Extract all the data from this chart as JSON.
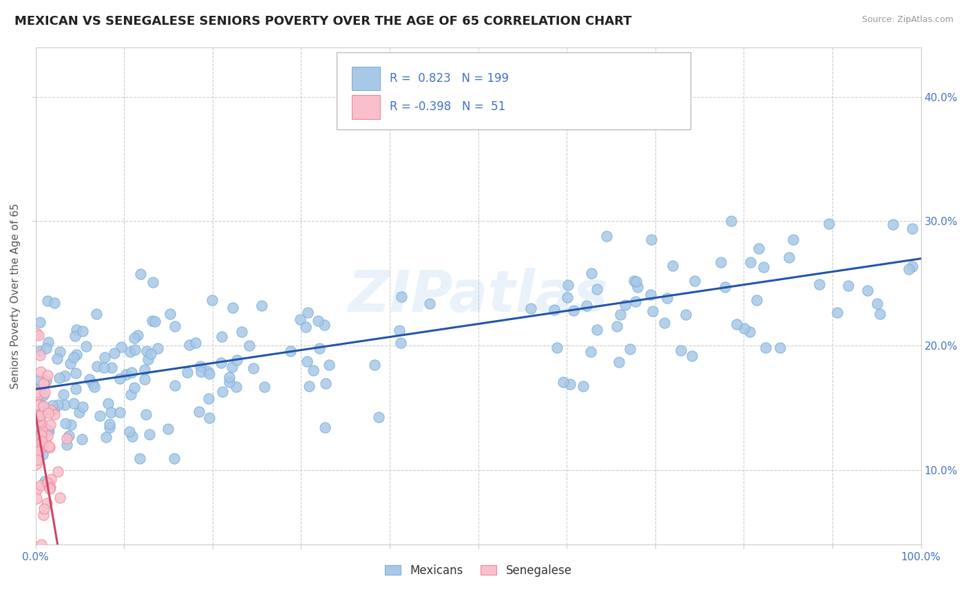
{
  "title": "MEXICAN VS SENEGALESE SENIORS POVERTY OVER THE AGE OF 65 CORRELATION CHART",
  "source": "Source: ZipAtlas.com",
  "ylabel": "Seniors Poverty Over the Age of 65",
  "xlim": [
    0.0,
    1.0
  ],
  "ylim": [
    0.04,
    0.44
  ],
  "mexican_color": "#A8C8E8",
  "mexican_edge_color": "#7BAFD4",
  "senegalese_color": "#F9C0CC",
  "senegalese_edge_color": "#EE8899",
  "mexican_line_color": "#2255AA",
  "senegalese_line_color": "#CC4466",
  "R_mexican": 0.823,
  "N_mexican": 199,
  "R_senegalese": -0.398,
  "N_senegalese": 51,
  "watermark": "ZIPatlas",
  "background_color": "#FFFFFF",
  "title_fontsize": 13,
  "axis_label_fontsize": 11,
  "tick_fontsize": 11,
  "dot_size": 120,
  "seed": 42
}
